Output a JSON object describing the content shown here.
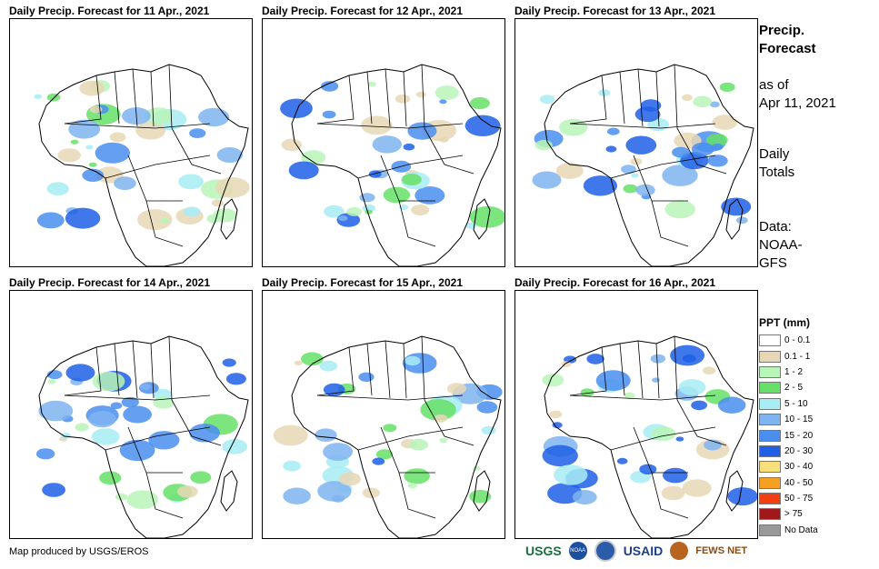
{
  "panels": [
    {
      "title": "Daily Precip. Forecast for 11 Apr., 2021"
    },
    {
      "title": "Daily Precip. Forecast for 12 Apr., 2021"
    },
    {
      "title": "Daily Precip. Forecast for 13 Apr., 2021"
    },
    {
      "title": "Daily Precip. Forecast for 14 Apr., 2021"
    },
    {
      "title": "Daily Precip. Forecast for 15 Apr., 2021"
    },
    {
      "title": "Daily Precip. Forecast for 16 Apr., 2021"
    }
  ],
  "sidebar": {
    "title_line1": "Precip.",
    "title_line2": "Forecast",
    "asof_line1": "as of",
    "asof_line2": "Apr 11, 2021",
    "totals_line1": "Daily",
    "totals_line2": "Totals",
    "data_line1": "Data:",
    "data_line2": "NOAA-",
    "data_line3": "GFS"
  },
  "legend": {
    "title": "PPT (mm)",
    "items": [
      {
        "label": "0 - 0.1",
        "color": "#ffffff"
      },
      {
        "label": "0.1 - 1",
        "color": "#e8d7b5"
      },
      {
        "label": "1 - 2",
        "color": "#b8f5b8"
      },
      {
        "label": "2 - 5",
        "color": "#66e066"
      },
      {
        "label": "5 - 10",
        "color": "#a8ecf4"
      },
      {
        "label": "10 - 15",
        "color": "#7fb4f0"
      },
      {
        "label": "15 - 20",
        "color": "#4a8ef0"
      },
      {
        "label": "20 - 30",
        "color": "#1f5fe6"
      },
      {
        "label": "30 - 40",
        "color": "#f7e07a"
      },
      {
        "label": "40 - 50",
        "color": "#f5a020"
      },
      {
        "label": "50 - 75",
        "color": "#f04010"
      },
      {
        "label": "> 75",
        "color": "#a01818"
      },
      {
        "label": "No Data",
        "color": "#999999"
      }
    ]
  },
  "credit": "Map produced by USGS/EROS",
  "logos": {
    "usgs": "USGS",
    "usaid": "USAID",
    "fewsnet": "FEWS NET"
  }
}
